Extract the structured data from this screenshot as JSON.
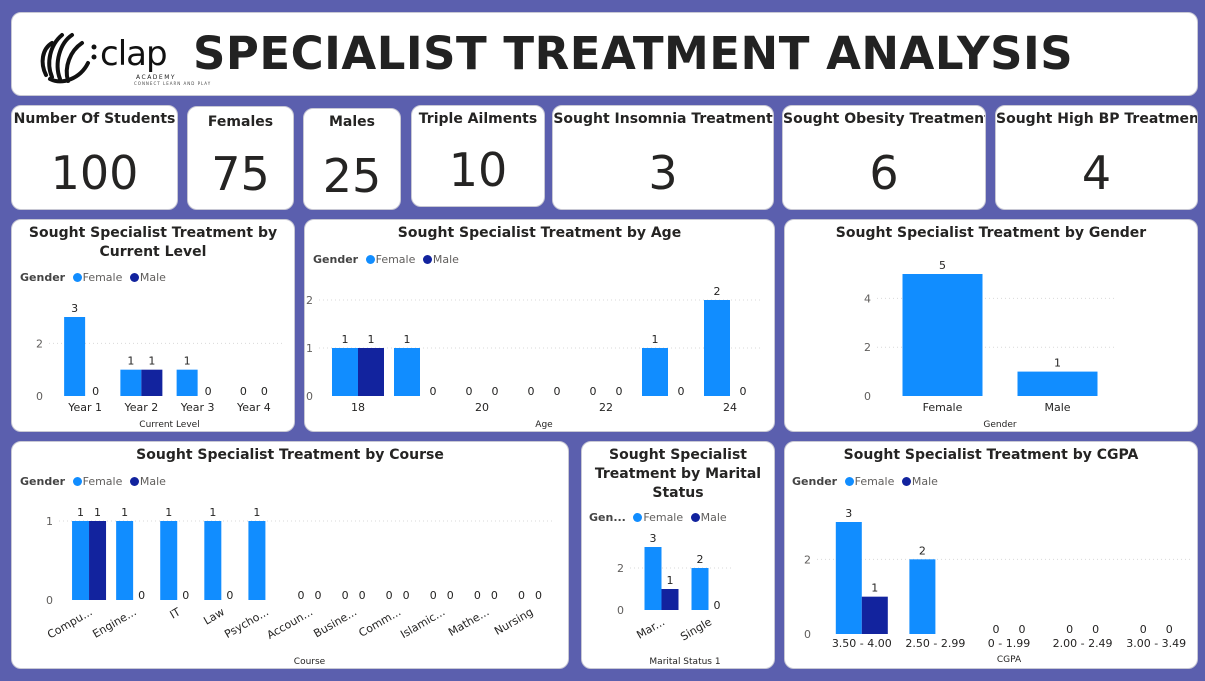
{
  "header": {
    "logo_text": "clap",
    "logo_tag": "ACADEMY",
    "logo_slogan": "CONNECT LEARN AND PLAY",
    "title": "SPECIALIST TREATMENT ANALYSIS"
  },
  "kpis": [
    {
      "label": "Number Of Students",
      "value": "100"
    },
    {
      "label": "Females",
      "value": "75"
    },
    {
      "label": "Males",
      "value": "25"
    },
    {
      "label": "Triple Ailments",
      "value": "10"
    },
    {
      "label": "Sought Insomnia Treatment",
      "value": "3"
    },
    {
      "label": "Sought Obesity Treatment",
      "value": "6"
    },
    {
      "label": "Sought High BP Treatment",
      "value": "4"
    }
  ],
  "colors": {
    "female": "#118dff",
    "male": "#12239e",
    "grid": "#d9d9d9"
  },
  "legend": {
    "title": "Gender",
    "title_short": "Gen...",
    "female": "Female",
    "male": "Male"
  },
  "chart_data": [
    {
      "id": "level",
      "type": "bar",
      "title_lines": [
        "Sought Specialist Treatment by",
        "Current Level"
      ],
      "xlabel": "Current Level",
      "categories": [
        "Year 1",
        "Year 2",
        "Year 3",
        "Year 4"
      ],
      "series": [
        {
          "name": "Female",
          "values": [
            3,
            1,
            1,
            0
          ]
        },
        {
          "name": "Male",
          "values": [
            0,
            1,
            0,
            0
          ]
        }
      ],
      "ylim": [
        0,
        3
      ],
      "yticks": [
        0,
        2
      ]
    },
    {
      "id": "age",
      "type": "bar",
      "title_lines": [
        "Sought Specialist Treatment by Age"
      ],
      "xlabel": "Age",
      "categories": [
        "18",
        "19",
        "20",
        "21",
        "22",
        "23",
        "24"
      ],
      "tick_labels": [
        "18",
        "",
        "20",
        "",
        "22",
        "",
        "24"
      ],
      "series": [
        {
          "name": "Female",
          "values": [
            1,
            1,
            0,
            0,
            0,
            1,
            2
          ]
        },
        {
          "name": "Male",
          "values": [
            1,
            0,
            0,
            0,
            0,
            0,
            0
          ]
        }
      ],
      "ylim": [
        0,
        2
      ],
      "yticks": [
        0,
        1,
        2
      ]
    },
    {
      "id": "gender",
      "type": "bar",
      "title_lines": [
        "Sought Specialist Treatment by Gender"
      ],
      "xlabel": "Gender",
      "categories": [
        "Female",
        "Male"
      ],
      "values": [
        5,
        1
      ],
      "ylim": [
        0,
        5
      ],
      "yticks": [
        0,
        2,
        4
      ]
    },
    {
      "id": "course",
      "type": "bar",
      "title_lines": [
        "Sought Specialist Treatment by Course"
      ],
      "xlabel": "Course",
      "categories": [
        "Compu...",
        "Engine...",
        "IT",
        "Law",
        "Psycho...",
        "Accoun...",
        "Busine...",
        "Comm...",
        "Islamic...",
        "Mathe...",
        "Nursing"
      ],
      "series": [
        {
          "name": "Female",
          "values": [
            1,
            1,
            1,
            1,
            1,
            0,
            0,
            0,
            0,
            0,
            0
          ]
        },
        {
          "name": "Male",
          "values": [
            1,
            0,
            0,
            0,
            null,
            0,
            0,
            0,
            0,
            0,
            0
          ]
        }
      ],
      "ylim": [
        0,
        1
      ],
      "yticks": [
        0,
        1
      ]
    },
    {
      "id": "marital",
      "type": "bar",
      "title_lines": [
        "Sought Specialist",
        "Treatment by Marital",
        "Status"
      ],
      "xlabel": "Marital Status 1",
      "categories": [
        "Mar...",
        "Single"
      ],
      "series": [
        {
          "name": "Female",
          "values": [
            3,
            2
          ]
        },
        {
          "name": "Male",
          "values": [
            1,
            0
          ]
        }
      ],
      "ylim": [
        0,
        3
      ],
      "yticks": [
        0,
        2
      ]
    },
    {
      "id": "cgpa",
      "type": "bar",
      "title_lines": [
        "Sought Specialist Treatment by CGPA"
      ],
      "xlabel": "CGPA",
      "categories": [
        "3.50 - 4.00",
        "2.50 - 2.99",
        "0 - 1.99",
        "2.00 - 2.49",
        "3.00 - 3.49"
      ],
      "series": [
        {
          "name": "Female",
          "values": [
            3,
            2,
            0,
            0,
            0
          ]
        },
        {
          "name": "Male",
          "values": [
            1,
            null,
            0,
            0,
            0
          ]
        }
      ],
      "ylim": [
        0,
        3
      ],
      "yticks": [
        0,
        2
      ]
    }
  ]
}
